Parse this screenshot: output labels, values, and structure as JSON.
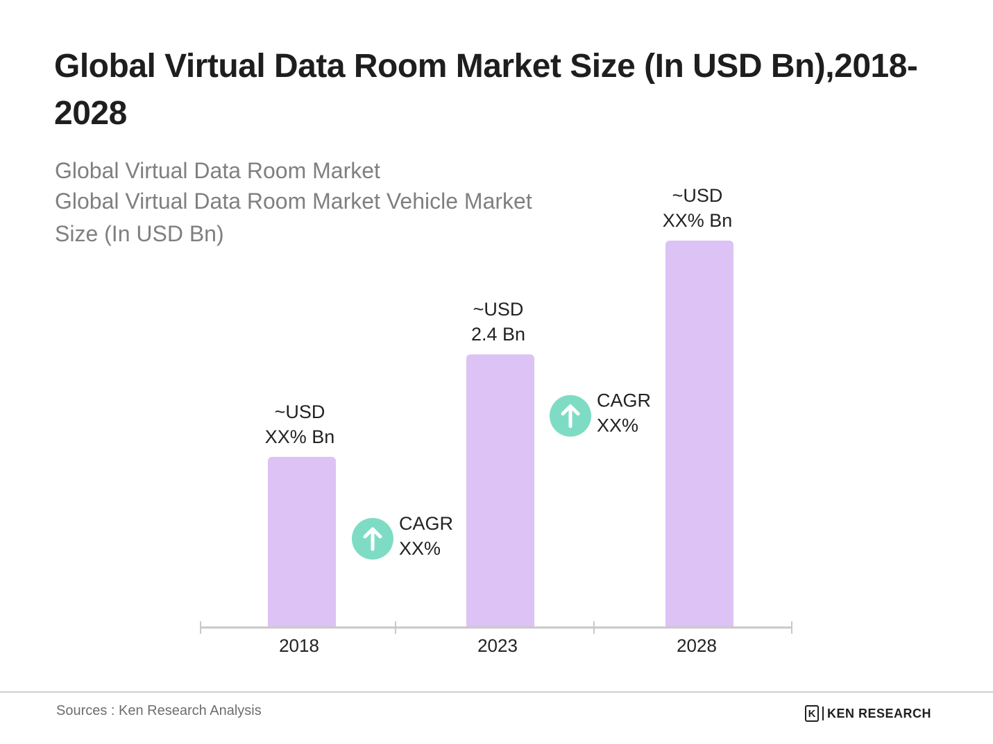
{
  "title": "Global Virtual Data Room Market Size (In USD Bn),2018-2028",
  "subtitle_lines": [
    "Global Virtual Data Room Market",
    "Global Virtual Data Room Market Vehicle Market",
    "Size (In USD Bn)"
  ],
  "colors": {
    "bar": "#dcc2f5",
    "axis": "#c8c8c8",
    "cagr_circle": "#7fdcc4",
    "title": "#1e1e1e",
    "subtitle": "#7f7f7f"
  },
  "chart_data": {
    "type": "bar",
    "categories": [
      "2018",
      "2023",
      "2028"
    ],
    "values": [
      1.5,
      2.4,
      3.4
    ],
    "data_labels": [
      [
        "~USD",
        "XX% Bn"
      ],
      [
        "~USD",
        "2.4 Bn"
      ],
      [
        "~USD",
        "XX% Bn"
      ]
    ],
    "annotations": [
      {
        "icon": "arrow-up-icon",
        "lines": [
          "CAGR",
          "XX%"
        ],
        "between": [
          "2018",
          "2023"
        ],
        "level": 0.78
      },
      {
        "icon": "arrow-up-icon",
        "lines": [
          "CAGR",
          "XX%"
        ],
        "between": [
          "2023",
          "2028"
        ],
        "level": 1.86
      }
    ],
    "ylim": [
      0,
      3.4
    ],
    "grid": false,
    "legend": "none"
  },
  "footer": {
    "source": "Sources : Ken Research Analysis",
    "logo_text": "KEN RESEARCH",
    "logo_mark": "K"
  }
}
